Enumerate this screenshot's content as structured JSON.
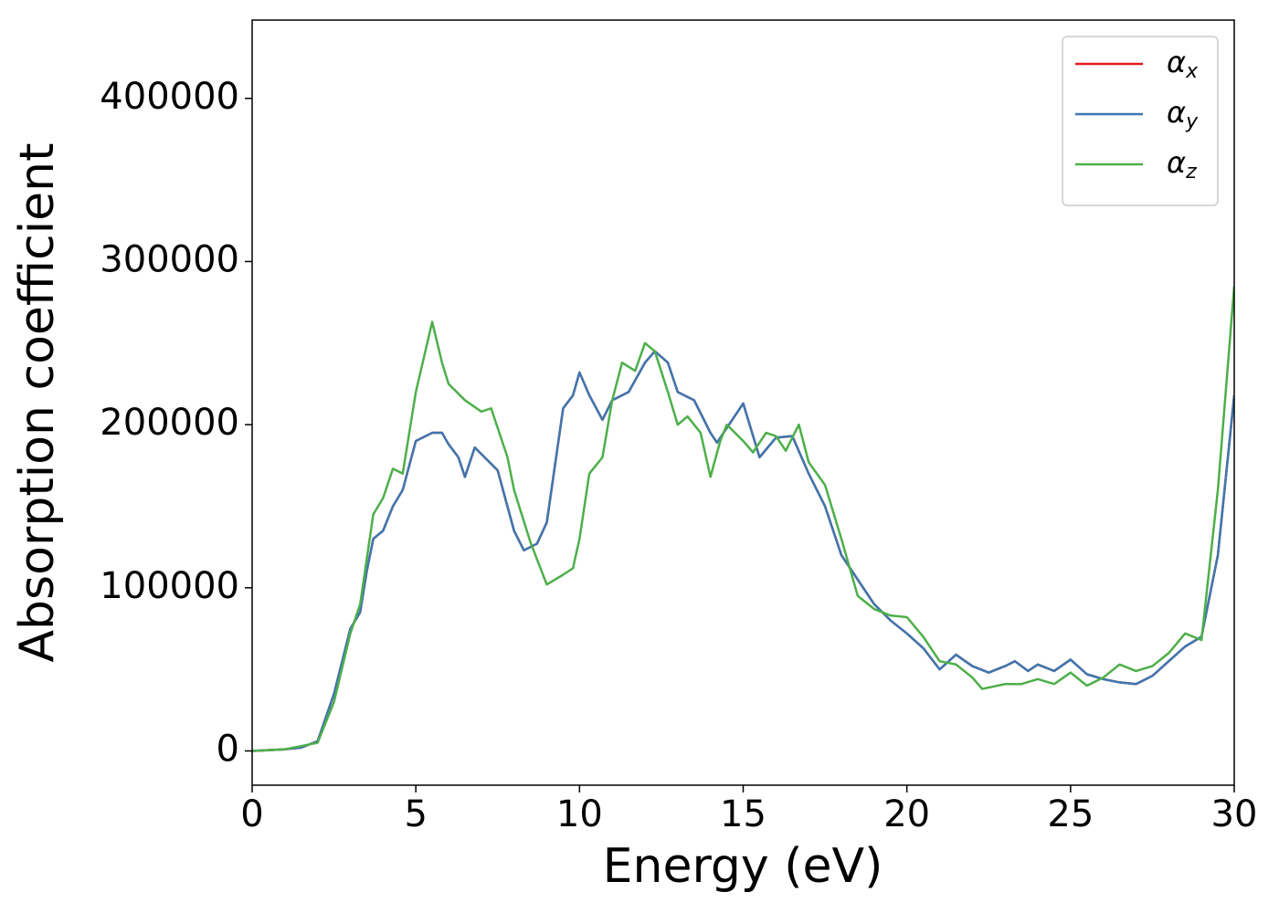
{
  "chart_data": {
    "type": "line",
    "xlabel": "Energy (eV)",
    "ylabel": "Absorption coefficient",
    "xlim": [
      0,
      30
    ],
    "ylim": [
      -21000,
      448000
    ],
    "xticks": [
      0,
      5,
      10,
      15,
      20,
      25,
      30
    ],
    "yticks": [
      0,
      100000,
      200000,
      300000,
      400000
    ],
    "legend": "upper right",
    "series": [
      {
        "name": "αx",
        "color": "#e41a1c",
        "x": [
          0,
          1,
          1.5,
          2,
          2.5,
          3,
          3.3,
          3.5,
          3.7,
          4,
          4.3,
          4.6,
          5,
          5.5,
          5.8,
          6,
          6.3,
          6.5,
          6.8,
          7,
          7.5,
          8,
          8.3,
          8.7,
          9,
          9.5,
          9.8,
          10,
          10.3,
          10.7,
          11,
          11.5,
          12,
          12.3,
          12.7,
          13,
          13.5,
          14,
          14.2,
          15,
          15.5,
          16,
          16.5,
          17,
          17.5,
          18,
          18.5,
          19,
          19.5,
          20,
          20.5,
          21,
          21.5,
          22,
          22.5,
          23,
          23.3,
          23.7,
          24,
          24.5,
          25,
          25.5,
          26,
          26.5,
          27,
          27.5,
          28,
          28.5,
          29,
          29.5,
          30
        ],
        "values": [
          0,
          1000,
          2000,
          6000,
          35000,
          75000,
          85000,
          110000,
          130000,
          135000,
          150000,
          160000,
          190000,
          195000,
          195000,
          188000,
          180000,
          168000,
          186000,
          182000,
          172000,
          135000,
          123000,
          127000,
          140000,
          210000,
          218000,
          232000,
          218000,
          203000,
          215000,
          220000,
          238000,
          245000,
          238000,
          220000,
          215000,
          195000,
          189000,
          213000,
          180000,
          192000,
          193000,
          170000,
          150000,
          120000,
          105000,
          90000,
          80000,
          72000,
          63000,
          50000,
          59000,
          52000,
          48000,
          52000,
          55000,
          49000,
          53000,
          49000,
          56000,
          47000,
          44000,
          42000,
          41000,
          46000,
          55000,
          64000,
          70000,
          120000,
          218000
        ]
      },
      {
        "name": "αy",
        "color": "#3d77b0",
        "x": [
          0,
          1,
          1.5,
          2,
          2.5,
          3,
          3.3,
          3.5,
          3.7,
          4,
          4.3,
          4.6,
          5,
          5.5,
          5.8,
          6,
          6.3,
          6.5,
          6.8,
          7,
          7.5,
          8,
          8.3,
          8.7,
          9,
          9.5,
          9.8,
          10,
          10.3,
          10.7,
          11,
          11.5,
          12,
          12.3,
          12.7,
          13,
          13.5,
          14,
          14.2,
          15,
          15.5,
          16,
          16.5,
          17,
          17.5,
          18,
          18.5,
          19,
          19.5,
          20,
          20.5,
          21,
          21.5,
          22,
          22.5,
          23,
          23.3,
          23.7,
          24,
          24.5,
          25,
          25.5,
          26,
          26.5,
          27,
          27.5,
          28,
          28.5,
          29,
          29.5,
          30
        ],
        "values": [
          0,
          1000,
          2000,
          6000,
          35000,
          75000,
          85000,
          110000,
          130000,
          135000,
          150000,
          160000,
          190000,
          195000,
          195000,
          188000,
          180000,
          168000,
          186000,
          182000,
          172000,
          135000,
          123000,
          127000,
          140000,
          210000,
          218000,
          232000,
          218000,
          203000,
          215000,
          220000,
          238000,
          245000,
          238000,
          220000,
          215000,
          195000,
          189000,
          213000,
          180000,
          192000,
          193000,
          170000,
          150000,
          120000,
          105000,
          90000,
          80000,
          72000,
          63000,
          50000,
          59000,
          52000,
          48000,
          52000,
          55000,
          49000,
          53000,
          49000,
          56000,
          47000,
          44000,
          42000,
          41000,
          46000,
          55000,
          64000,
          70000,
          120000,
          218000
        ]
      },
      {
        "name": "αz",
        "color": "#4daf4a",
        "x": [
          0,
          1,
          2,
          2.5,
          3,
          3.3,
          3.7,
          4,
          4.3,
          4.6,
          5,
          5.5,
          5.8,
          6,
          6.5,
          7,
          7.3,
          7.8,
          8,
          8.5,
          9,
          9.5,
          9.8,
          10,
          10.3,
          10.7,
          11,
          11.3,
          11.7,
          12,
          12.3,
          12.7,
          13,
          13.3,
          13.7,
          14,
          14.3,
          14.5,
          15,
          15.3,
          15.7,
          16,
          16.3,
          16.7,
          17,
          17.5,
          18,
          18.5,
          19,
          19.5,
          20,
          20.5,
          21,
          21.5,
          22,
          22.3,
          23,
          23.5,
          24,
          24.5,
          25,
          25.5,
          26,
          26.5,
          27,
          27.5,
          28,
          28.5,
          29,
          29.5,
          30
        ],
        "values": [
          0,
          1000,
          5000,
          30000,
          72000,
          90000,
          145000,
          155000,
          173000,
          170000,
          220000,
          263000,
          238000,
          225000,
          215000,
          208000,
          210000,
          180000,
          160000,
          128000,
          102000,
          108000,
          112000,
          130000,
          170000,
          180000,
          215000,
          238000,
          233000,
          250000,
          245000,
          220000,
          200000,
          205000,
          195000,
          168000,
          190000,
          200000,
          190000,
          183000,
          195000,
          193000,
          184000,
          200000,
          177000,
          163000,
          130000,
          95000,
          87000,
          83000,
          82000,
          70000,
          55000,
          53000,
          45000,
          38000,
          41000,
          41000,
          44000,
          41000,
          48000,
          40000,
          45000,
          53000,
          49000,
          52000,
          60000,
          72000,
          68000,
          160000,
          285000
        ]
      }
    ]
  }
}
